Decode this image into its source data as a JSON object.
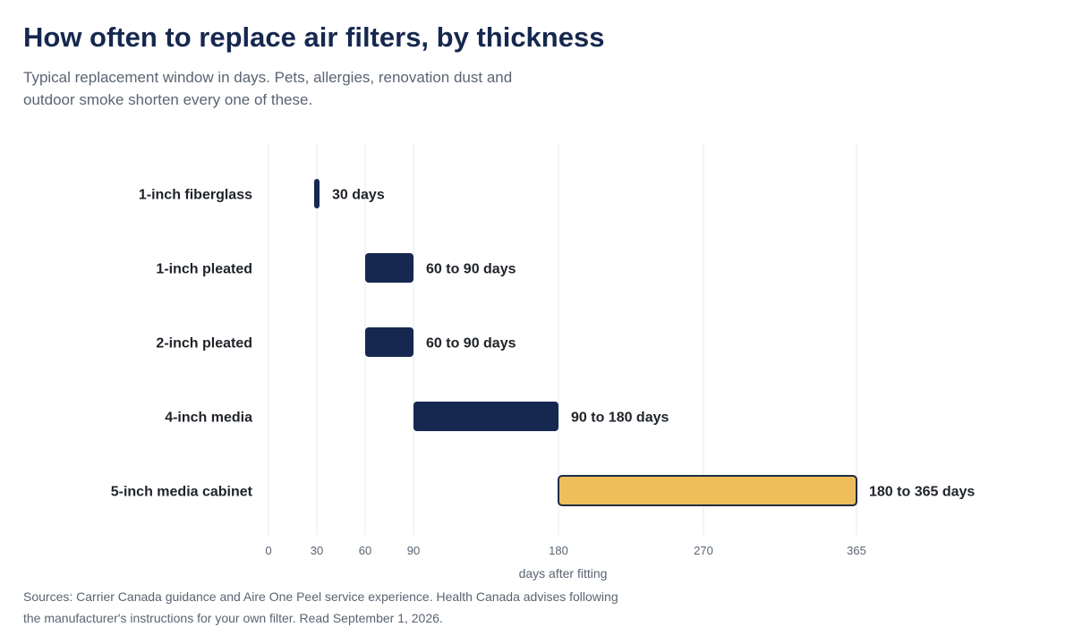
{
  "header": {
    "title": "How often to replace air filters, by thickness",
    "subtitle": "Typical replacement window in days. Pets, allergies, renovation dust and outdoor smoke shorten every one of these."
  },
  "footer": {
    "source_line1": "Sources: Carrier Canada guidance and Aire One Peel service experience. Health Canada advises following",
    "source_line2": "the manufacturer's instructions for your own filter. Read September 1, 2026."
  },
  "chart_data": {
    "type": "bar",
    "orientation": "horizontal",
    "title": "How often to replace air filters, by thickness",
    "subtitle": "Typical replacement window in days. Pets, allergies, renovation dust and outdoor smoke shorten every one of these.",
    "xlabel": "days after fitting",
    "ylabel": "",
    "xlim": [
      0,
      400
    ],
    "x_ticks": [
      0,
      30,
      60,
      90,
      180,
      270,
      365
    ],
    "grid": "vertical",
    "legend": "none",
    "categories": [
      "1-inch fiberglass",
      "1-inch pleated",
      "2-inch pleated",
      "4-inch media",
      "5-inch media cabinet"
    ],
    "ranges": [
      {
        "category": "1-inch fiberglass",
        "start": 30,
        "end": 30,
        "label": "30 days",
        "highlight": false
      },
      {
        "category": "1-inch pleated",
        "start": 60,
        "end": 90,
        "label": "60 to 90 days",
        "highlight": false
      },
      {
        "category": "2-inch pleated",
        "start": 60,
        "end": 90,
        "label": "60 to 90 days",
        "highlight": false
      },
      {
        "category": "4-inch media",
        "start": 90,
        "end": 180,
        "label": "90 to 180 days",
        "highlight": false
      },
      {
        "category": "5-inch media cabinet",
        "start": 180,
        "end": 365,
        "label": "180 to 365 days",
        "highlight": true
      }
    ],
    "colors": {
      "bar": "#16284f",
      "highlight_bar": "#edbe5a",
      "highlight_outline": "#1f2c44",
      "grid": "#e6e9ed",
      "tick_text": "#5a6472",
      "label_text": "#1f2328"
    }
  }
}
